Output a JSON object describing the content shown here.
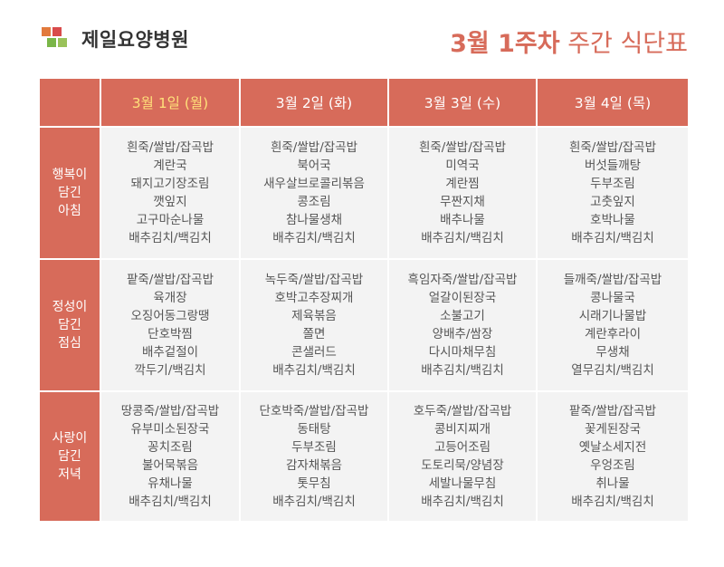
{
  "hospital": {
    "name": "제일요양병원"
  },
  "title": {
    "strong": "3월 1주차",
    "light": "주간 식단표"
  },
  "colors": {
    "accent": "#d76b5a",
    "cell_bg": "#f3f3f3",
    "today_text": "#ffe07a"
  },
  "days": [
    {
      "label": "3월 1일 (월)",
      "highlight": true
    },
    {
      "label": "3월 2일 (화)",
      "highlight": false
    },
    {
      "label": "3월 3일 (수)",
      "highlight": false
    },
    {
      "label": "3월 4일 (목)",
      "highlight": false
    }
  ],
  "meals": [
    {
      "label_lines": [
        "행복이",
        "담긴",
        "아침"
      ],
      "items": [
        [
          "흰죽/쌀밥/잡곡밥",
          "계란국",
          "돼지고기장조림",
          "깻잎지",
          "고구마순나물",
          "배추김치/백김치"
        ],
        [
          "흰죽/쌀밥/잡곡밥",
          "북어국",
          "새우살브로콜리볶음",
          "콩조림",
          "참나물생채",
          "배추김치/백김치"
        ],
        [
          "흰죽/쌀밥/잡곡밥",
          "미역국",
          "계란찜",
          "무짠지채",
          "배추나물",
          "배추김치/백김치"
        ],
        [
          "흰죽/쌀밥/잡곡밥",
          "버섯들깨탕",
          "두부조림",
          "고춧잎지",
          "호박나물",
          "배추김치/백김치"
        ]
      ]
    },
    {
      "label_lines": [
        "정성이",
        "담긴",
        "점심"
      ],
      "items": [
        [
          "팥죽/쌀밥/잡곡밥",
          "육개장",
          "오징어동그랑땡",
          "단호박찜",
          "배추겉절이",
          "깍두기/백김치"
        ],
        [
          "녹두죽/쌀밥/잡곡밥",
          "호박고추장찌개",
          "제육볶음",
          "쫄면",
          "콘샐러드",
          "배추김치/백김치"
        ],
        [
          "흑임자죽/쌀밥/잡곡밥",
          "얼갈이된장국",
          "소불고기",
          "양배추/쌈장",
          "다시마채무침",
          "배추김치/백김치"
        ],
        [
          "들깨죽/쌀밥/잡곡밥",
          "콩나물국",
          "시래기나물밥",
          "계란후라이",
          "무생채",
          "열무김치/백김치"
        ]
      ]
    },
    {
      "label_lines": [
        "사랑이",
        "담긴",
        "저녁"
      ],
      "items": [
        [
          "땅콩죽/쌀밥/잡곡밥",
          "유부미소된장국",
          "꽁치조림",
          "불어묵볶음",
          "유채나물",
          "배추김치/백김치"
        ],
        [
          "단호박죽/쌀밥/잡곡밥",
          "동태탕",
          "두부조림",
          "감자채볶음",
          "톳무침",
          "배추김치/백김치"
        ],
        [
          "호두죽/쌀밥/잡곡밥",
          "콩비지찌개",
          "고등어조림",
          "도토리묵/양념장",
          "세발나물무침",
          "배추김치/백김치"
        ],
        [
          "팥죽/쌀밥/잡곡밥",
          "꽃게된장국",
          "옛날소세지전",
          "우엉조림",
          "취나물",
          "배추김치/백김치"
        ]
      ]
    }
  ]
}
